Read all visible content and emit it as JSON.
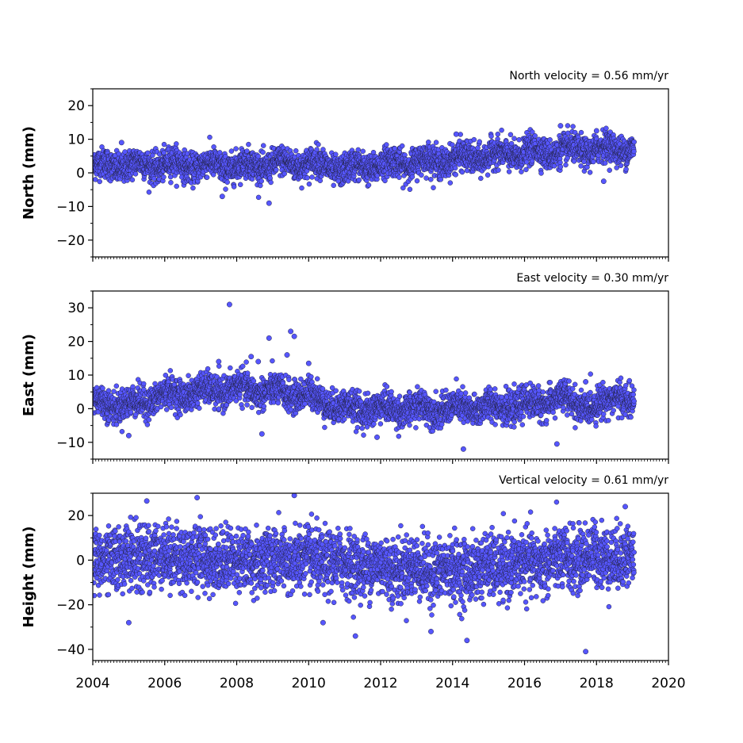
{
  "chart_data": {
    "type": "scatter",
    "x_axis": {
      "ticks": [
        2004,
        2006,
        2008,
        2010,
        2012,
        2014,
        2016,
        2018,
        2020
      ],
      "tick_labels": [
        "2004",
        "2006",
        "2008",
        "2010",
        "2012",
        "2014",
        "2016",
        "2018",
        "2020"
      ],
      "xlim": [
        2004,
        2020
      ],
      "minor_ticks_per_year": 12
    },
    "data_span": [
      2004.0,
      2019.05
    ],
    "point_color": "#5656ff",
    "edge_color": "#222244",
    "grid": false,
    "panels": [
      {
        "id": "north",
        "ylabel": "North (mm)",
        "velocity_label": "North velocity = 0.56 mm/yr",
        "velocity_mm_per_yr": 0.56,
        "ylim": [
          -25,
          25
        ],
        "yticks": [
          -20,
          -10,
          0,
          10,
          20
        ],
        "ytick_labels": [
          "−20",
          "−10",
          "0",
          "10",
          "20"
        ],
        "series": [
          {
            "x": [
              2004.0,
              2006.0,
              2008.0,
              2010.0,
              2011.0,
              2012.0,
              2014.0,
              2016.0,
              2018.0,
              2019.05
            ],
            "y": [
              2.0,
              2.5,
              2.0,
              3.0,
              1.0,
              2.5,
              4.0,
              6.0,
              7.0,
              7.5
            ]
          }
        ],
        "noise_std_mm": 2.2,
        "outliers": [
          {
            "x": 2007.6,
            "y": -7
          },
          {
            "x": 2008.9,
            "y": -9
          },
          {
            "x": 2014.1,
            "y": 11.5
          },
          {
            "x": 2017.0,
            "y": 14
          },
          {
            "x": 2018.0,
            "y": 12.5
          },
          {
            "x": 2004.8,
            "y": 9
          },
          {
            "x": 2018.2,
            "y": -2.5
          }
        ]
      },
      {
        "id": "east",
        "ylabel": "East (mm)",
        "velocity_label": "East velocity = 0.30 mm/yr",
        "velocity_mm_per_yr": 0.3,
        "ylim": [
          -15,
          35
        ],
        "yticks": [
          -10,
          0,
          10,
          20,
          30
        ],
        "ytick_labels": [
          "−10",
          "0",
          "10",
          "20",
          "30"
        ],
        "series": [
          {
            "x": [
              2004.0,
              2005.0,
              2006.0,
              2007.0,
              2008.0,
              2009.0,
              2010.0,
              2011.0,
              2012.0,
              2014.0,
              2016.0,
              2017.0,
              2018.0,
              2018.6,
              2019.05
            ],
            "y": [
              2.0,
              1.0,
              4.0,
              5.0,
              6.0,
              5.0,
              4.0,
              0.0,
              0.0,
              0.0,
              1.0,
              3.0,
              0.0,
              5.0,
              0.0
            ]
          }
        ],
        "noise_std_mm": 2.3,
        "outliers": [
          {
            "x": 2007.8,
            "y": 31
          },
          {
            "x": 2008.9,
            "y": 21
          },
          {
            "x": 2009.5,
            "y": 23
          },
          {
            "x": 2009.6,
            "y": 21.5
          },
          {
            "x": 2009.4,
            "y": 16
          },
          {
            "x": 2008.4,
            "y": 15.5
          },
          {
            "x": 2008.6,
            "y": 14
          },
          {
            "x": 2007.5,
            "y": 14
          },
          {
            "x": 2010.0,
            "y": 13.5
          },
          {
            "x": 2005.0,
            "y": -8
          },
          {
            "x": 2008.7,
            "y": -7.5
          },
          {
            "x": 2011.9,
            "y": -8.5
          },
          {
            "x": 2014.3,
            "y": -12
          },
          {
            "x": 2016.9,
            "y": -10.5
          },
          {
            "x": 2017.7,
            "y": 8
          }
        ]
      },
      {
        "id": "height",
        "ylabel": "Height (mm)",
        "velocity_label": "Vertical velocity = 0.61 mm/yr",
        "velocity_mm_per_yr": 0.61,
        "ylim": [
          -45,
          30
        ],
        "yticks": [
          -40,
          -20,
          0,
          20
        ],
        "ytick_labels": [
          "−40",
          "−20",
          "0",
          "20"
        ],
        "series": [
          {
            "x": [
              2004.0,
              2006.0,
              2008.0,
              2010.0,
              2012.0,
              2014.0,
              2016.0,
              2018.0,
              2019.05
            ],
            "y": [
              0.0,
              2.0,
              0.0,
              0.0,
              -3.0,
              -5.0,
              -2.0,
              2.0,
              1.0
            ]
          }
        ],
        "noise_std_mm": 7.0,
        "outliers": [
          {
            "x": 2009.6,
            "y": 29
          },
          {
            "x": 2006.9,
            "y": 28
          },
          {
            "x": 2005.5,
            "y": 26.5
          },
          {
            "x": 2011.3,
            "y": -34
          },
          {
            "x": 2013.4,
            "y": -32
          },
          {
            "x": 2014.4,
            "y": -36
          },
          {
            "x": 2017.7,
            "y": -41
          },
          {
            "x": 2005.0,
            "y": -28
          },
          {
            "x": 2010.4,
            "y": -28
          },
          {
            "x": 2018.8,
            "y": 24
          }
        ]
      }
    ]
  }
}
